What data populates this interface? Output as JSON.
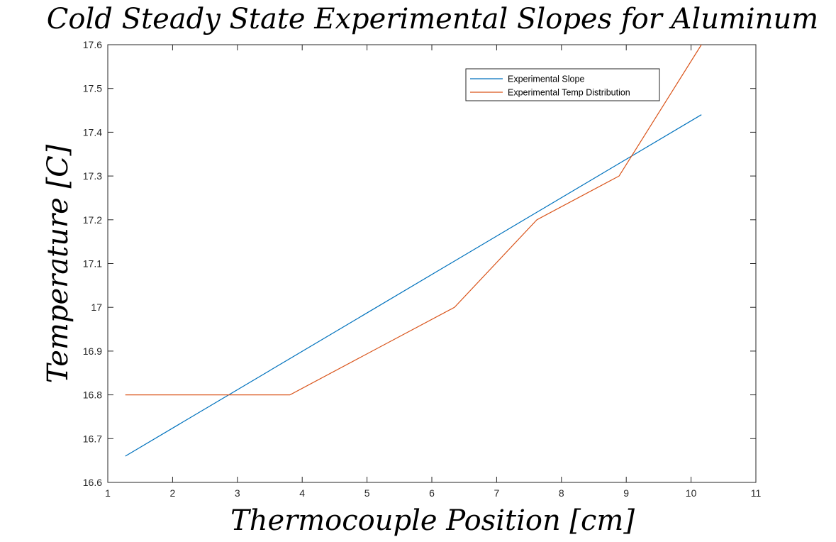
{
  "chart_data": {
    "type": "line",
    "title": "Cold Steady State Experimental Slopes for Aluminum",
    "xlabel": "Thermocouple Position [cm]",
    "ylabel": "Temperature [C]",
    "xlim": [
      1,
      11
    ],
    "ylim": [
      16.6,
      17.6
    ],
    "xticks": [
      1,
      2,
      3,
      4,
      5,
      6,
      7,
      8,
      9,
      10,
      11
    ],
    "yticks": [
      16.6,
      16.7,
      16.8,
      16.9,
      17,
      17.1,
      17.2,
      17.3,
      17.4,
      17.5,
      17.6
    ],
    "grid": false,
    "legend_position": "top-right",
    "series": [
      {
        "name": "Experimental Slope",
        "color": "#0072BD",
        "x": [
          1.27,
          10.16
        ],
        "y": [
          16.66,
          17.44
        ]
      },
      {
        "name": "Experimental Temp Distribution",
        "color": "#D95319",
        "x": [
          1.27,
          3.81,
          6.35,
          7.62,
          8.89,
          10.16
        ],
        "y": [
          16.8,
          16.8,
          17.0,
          17.2,
          17.3,
          17.6
        ]
      }
    ]
  }
}
